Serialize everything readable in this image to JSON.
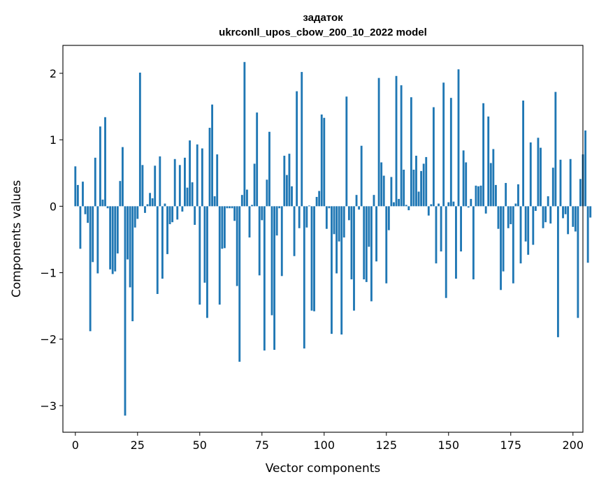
{
  "chart_data": {
    "type": "bar",
    "title": "задаток",
    "subtitle": "ukrconll_upos_cbow_200_10_2022 model",
    "xlabel": "Vector components",
    "ylabel": "Components values",
    "xlim": [
      -5,
      204
    ],
    "ylim": [
      -3.4,
      2.42
    ],
    "xticks": [
      0,
      25,
      50,
      75,
      100,
      125,
      150,
      175,
      200
    ],
    "yticks": [
      -3,
      -2,
      -1,
      0,
      1,
      2
    ],
    "xtick_labels": [
      "0",
      "25",
      "50",
      "75",
      "100",
      "125",
      "150",
      "175",
      "200"
    ],
    "ytick_labels": [
      "−3",
      "−2",
      "−1",
      "0",
      "1",
      "2"
    ],
    "bar_color": "#1f77b4",
    "grid": false,
    "values": [
      0.6,
      0.32,
      -0.64,
      0.37,
      -0.12,
      -0.25,
      -1.88,
      -0.84,
      0.73,
      -1.01,
      1.2,
      0.1,
      1.34,
      -0.03,
      -0.95,
      -1.02,
      -0.98,
      -0.71,
      0.38,
      0.89,
      -3.15,
      -0.8,
      -1.22,
      -1.73,
      -0.32,
      -0.19,
      2.01,
      0.62,
      -0.1,
      0.03,
      0.2,
      0.12,
      0.61,
      -1.32,
      0.75,
      -1.09,
      0.04,
      -0.72,
      -0.27,
      -0.24,
      0.71,
      -0.2,
      0.62,
      -0.08,
      0.73,
      0.28,
      0.99,
      0.36,
      -0.28,
      0.93,
      -1.48,
      0.87,
      -1.15,
      -1.68,
      1.18,
      1.53,
      0.15,
      0.78,
      -1.48,
      -0.64,
      -0.63,
      -0.03,
      -0.03,
      -0.03,
      -0.22,
      -1.2,
      -2.34,
      0.17,
      2.17,
      0.25,
      -0.47,
      0.02,
      0.64,
      1.41,
      -1.04,
      -0.21,
      -2.17,
      0.4,
      1.12,
      -1.64,
      -2.16,
      -0.44,
      -0.03,
      -1.05,
      0.76,
      0.47,
      0.79,
      0.3,
      -0.75,
      1.73,
      -0.33,
      2.02,
      -2.14,
      -0.32,
      0.01,
      -1.57,
      -1.58,
      0.14,
      0.23,
      1.38,
      1.33,
      -0.34,
      -0.03,
      -1.92,
      -0.42,
      -1.01,
      -0.53,
      -1.93,
      -0.47,
      1.65,
      -0.21,
      -1.1,
      -1.57,
      0.17,
      -0.05,
      0.91,
      -1.1,
      -1.14,
      -0.61,
      -1.43,
      0.17,
      -0.83,
      1.93,
      0.66,
      0.46,
      -1.16,
      -0.36,
      0.44,
      0.06,
      1.96,
      0.11,
      1.82,
      0.55,
      0.02,
      -0.06,
      1.64,
      0.55,
      0.76,
      0.22,
      0.53,
      0.64,
      0.74,
      -0.14,
      0.03,
      1.49,
      -0.86,
      0.04,
      -0.68,
      1.86,
      -1.38,
      0.06,
      1.63,
      0.07,
      -1.09,
      2.06,
      -0.68,
      0.84,
      0.66,
      -0.02,
      0.11,
      -1.1,
      0.31,
      0.3,
      0.31,
      1.55,
      -0.11,
      1.35,
      0.65,
      0.86,
      0.32,
      -0.34,
      -1.26,
      -0.98,
      0.35,
      -0.33,
      -0.27,
      -1.16,
      0.04,
      0.33,
      -0.86,
      1.59,
      -0.53,
      -0.73,
      0.96,
      -0.58,
      -0.07,
      1.03,
      0.88,
      -0.33,
      -0.24,
      0.15,
      -0.26,
      0.58,
      1.72,
      -1.97,
      0.7,
      -0.18,
      -0.12,
      -0.42,
      0.71,
      -0.31,
      -0.38,
      -1.68,
      0.41,
      0.78,
      1.14,
      -0.85,
      -0.17
    ]
  }
}
